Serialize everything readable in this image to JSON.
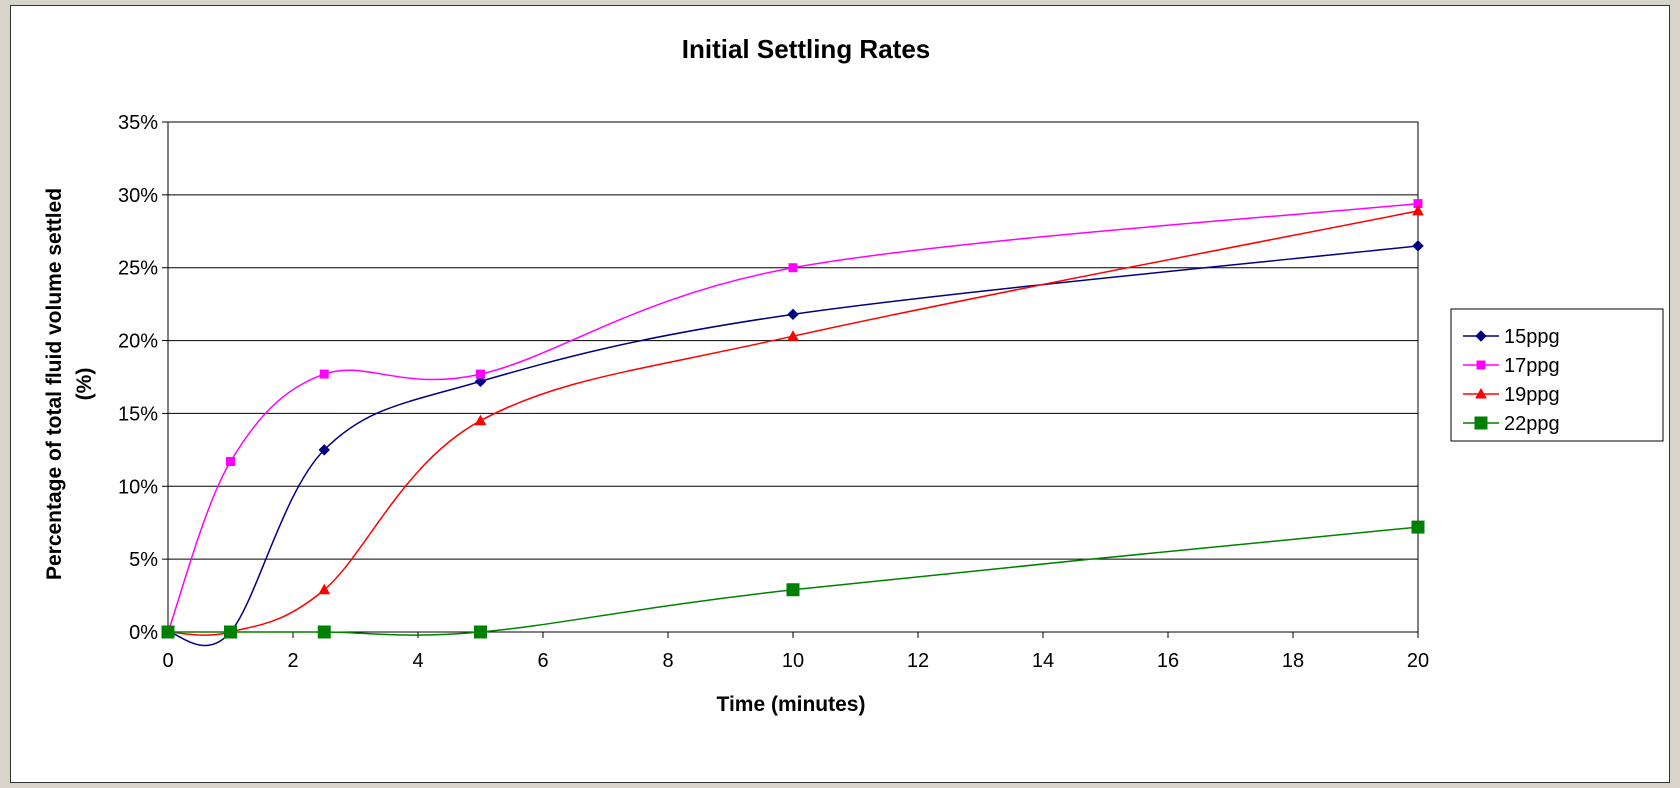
{
  "chart_data": {
    "type": "line",
    "title": "Initial Settling Rates",
    "xlabel": "Time (minutes)",
    "ylabel_line1": "Percentage of total fluid volume settled",
    "ylabel_line2": "(%)",
    "xlim": [
      0,
      20
    ],
    "ylim": [
      0,
      0.35
    ],
    "x_ticks": [
      0,
      2,
      4,
      6,
      8,
      10,
      12,
      14,
      16,
      18,
      20
    ],
    "x_tick_labels": [
      "0",
      "2",
      "4",
      "6",
      "8",
      "10",
      "12",
      "14",
      "16",
      "18",
      "20"
    ],
    "y_ticks": [
      0,
      0.05,
      0.1,
      0.15,
      0.2,
      0.25,
      0.3,
      0.35
    ],
    "y_tick_labels": [
      "0%",
      "5%",
      "10%",
      "15%",
      "20%",
      "25%",
      "30%",
      "35%"
    ],
    "grid": "horizontal",
    "legend_position": "right",
    "series": [
      {
        "name": "15ppg",
        "color": "#000080",
        "marker": "diamond",
        "x": [
          0,
          1,
          2.5,
          5,
          10,
          20
        ],
        "y": [
          0.0,
          0.0,
          0.125,
          0.172,
          0.218,
          0.265
        ]
      },
      {
        "name": "17ppg",
        "color": "#ff00ff",
        "marker": "square",
        "x": [
          0,
          1,
          2.5,
          5,
          10,
          20
        ],
        "y": [
          0.0,
          0.117,
          0.177,
          0.177,
          0.25,
          0.294
        ]
      },
      {
        "name": "19ppg",
        "color": "#ff0000",
        "marker": "triangle",
        "x": [
          0,
          1,
          2.5,
          5,
          10,
          20
        ],
        "y": [
          0.0,
          0.0,
          0.029,
          0.145,
          0.203,
          0.289
        ]
      },
      {
        "name": "22ppg",
        "color": "#008000",
        "marker": "square-large",
        "x": [
          0,
          1,
          2.5,
          5,
          10,
          20
        ],
        "y": [
          0.0,
          0.0,
          0.0,
          0.0,
          0.029,
          0.072
        ]
      }
    ]
  }
}
